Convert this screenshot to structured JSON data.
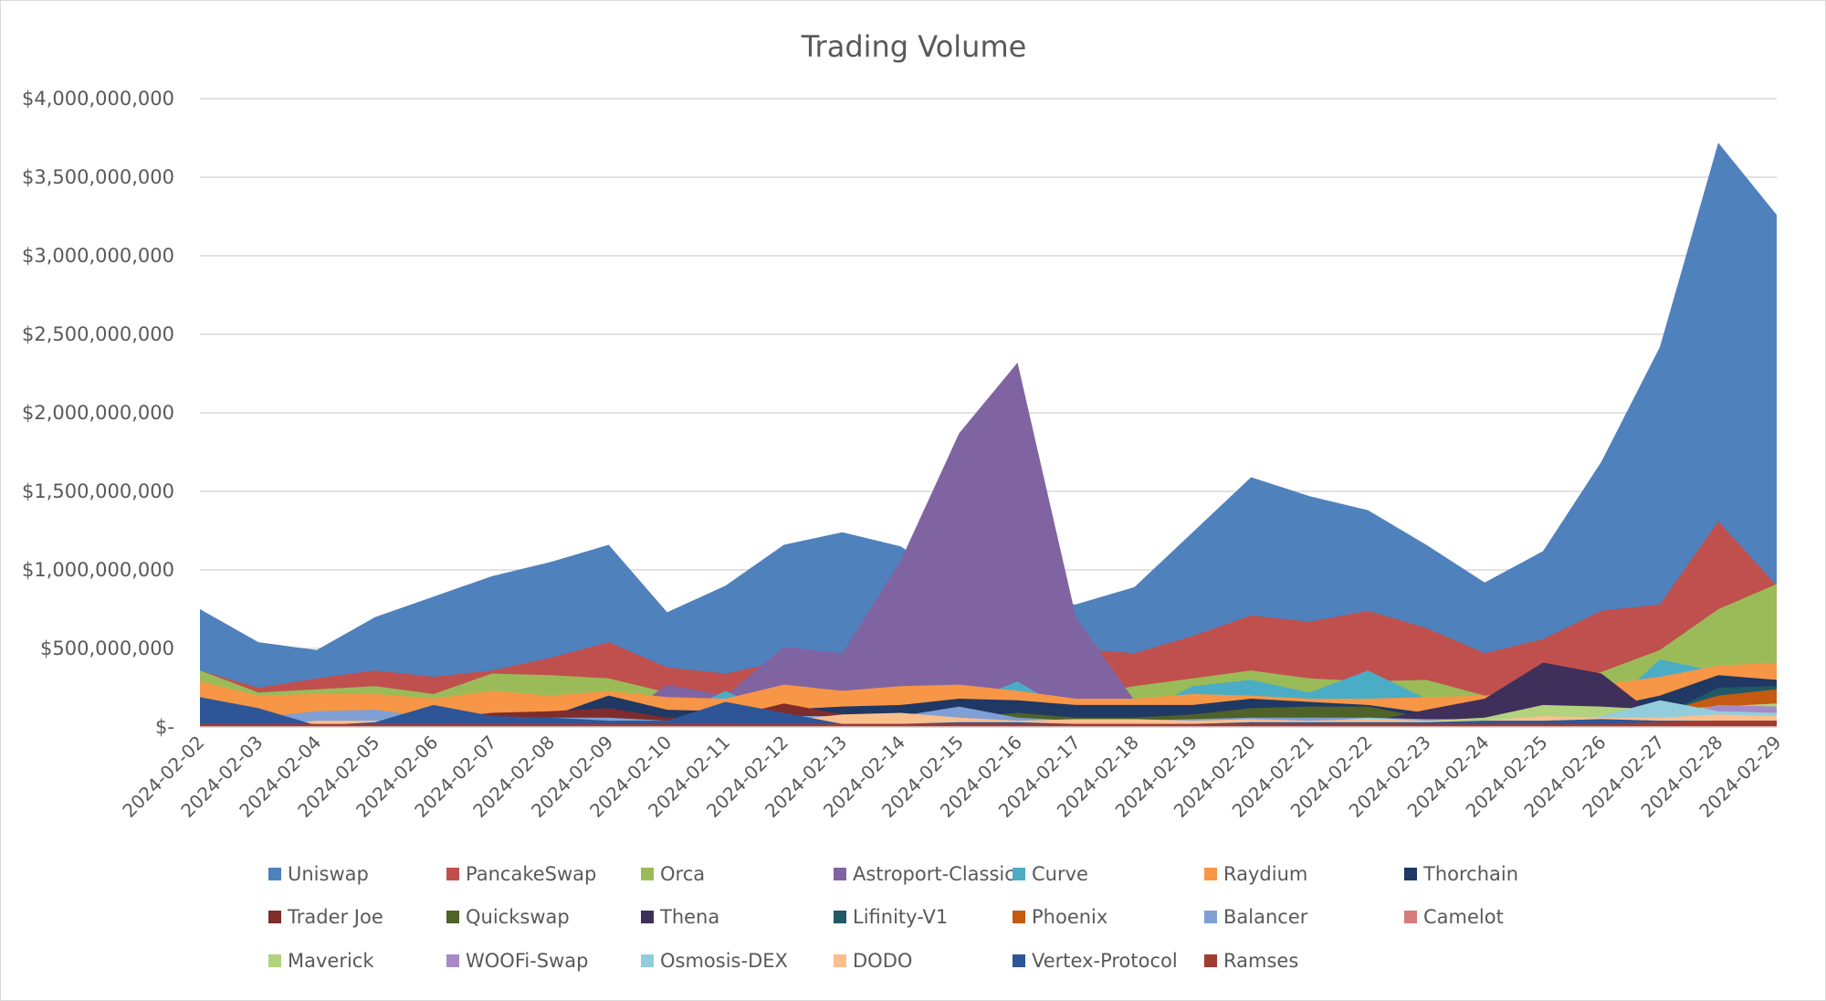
{
  "chart_data": {
    "type": "area",
    "title": "Trading Volume",
    "xlabel": "",
    "ylabel": "",
    "ylim": [
      0,
      4000000000
    ],
    "yticks": [
      0,
      500000000,
      1000000000,
      1500000000,
      2000000000,
      2500000000,
      3000000000,
      3500000000,
      4000000000
    ],
    "ytick_labels": [
      "$-",
      "$500,000,000",
      "$1,000,000,000",
      "$1,500,000,000",
      "$2,000,000,000",
      "$2,500,000,000",
      "$3,000,000,000",
      "$3,500,000,000",
      "$4,000,000,000"
    ],
    "grid": true,
    "legend_position": "bottom",
    "stacked": false,
    "x": [
      "2024-02-02",
      "2024-02-03",
      "2024-02-04",
      "2024-02-05",
      "2024-02-06",
      "2024-02-07",
      "2024-02-08",
      "2024-02-09",
      "2024-02-10",
      "2024-02-11",
      "2024-02-12",
      "2024-02-13",
      "2024-02-14",
      "2024-02-15",
      "2024-02-16",
      "2024-02-17",
      "2024-02-18",
      "2024-02-19",
      "2024-02-20",
      "2024-02-21",
      "2024-02-22",
      "2024-02-23",
      "2024-02-24",
      "2024-02-25",
      "2024-02-26",
      "2024-02-27",
      "2024-02-28",
      "2024-02-29"
    ],
    "series": [
      {
        "name": "Uniswap",
        "color": "#4f81bd",
        "values": [
          750000000,
          540000000,
          490000000,
          700000000,
          830000000,
          960000000,
          1050000000,
          1160000000,
          730000000,
          900000000,
          1160000000,
          1240000000,
          1150000000,
          900000000,
          800000000,
          780000000,
          890000000,
          1240000000,
          1590000000,
          1470000000,
          1380000000,
          1160000000,
          920000000,
          1120000000,
          1690000000,
          2420000000,
          3720000000,
          3260000000
        ]
      },
      {
        "name": "PancakeSwap",
        "color": "#c0504d",
        "values": [
          360000000,
          250000000,
          310000000,
          360000000,
          320000000,
          360000000,
          440000000,
          540000000,
          380000000,
          340000000,
          420000000,
          460000000,
          470000000,
          500000000,
          520000000,
          500000000,
          470000000,
          580000000,
          710000000,
          670000000,
          740000000,
          630000000,
          470000000,
          560000000,
          740000000,
          780000000,
          1310000000,
          900000000
        ]
      },
      {
        "name": "Orca",
        "color": "#9bbb59",
        "values": [
          360000000,
          220000000,
          240000000,
          260000000,
          210000000,
          340000000,
          330000000,
          310000000,
          220000000,
          200000000,
          230000000,
          220000000,
          240000000,
          250000000,
          220000000,
          190000000,
          260000000,
          310000000,
          360000000,
          310000000,
          290000000,
          300000000,
          200000000,
          240000000,
          350000000,
          490000000,
          750000000,
          910000000
        ]
      },
      {
        "name": "Astroport-Classic",
        "color": "#8064a2",
        "values": [
          10000000,
          10000000,
          10000000,
          10000000,
          10000000,
          10000000,
          10000000,
          10000000,
          270000000,
          200000000,
          510000000,
          470000000,
          1060000000,
          1870000000,
          2320000000,
          700000000,
          170000000,
          10000000,
          10000000,
          10000000,
          10000000,
          10000000,
          10000000,
          10000000,
          10000000,
          10000000,
          10000000,
          10000000
        ]
      },
      {
        "name": "Curve",
        "color": "#4bacc6",
        "values": [
          40000000,
          40000000,
          40000000,
          50000000,
          40000000,
          40000000,
          40000000,
          50000000,
          50000000,
          230000000,
          60000000,
          60000000,
          90000000,
          140000000,
          290000000,
          70000000,
          70000000,
          260000000,
          300000000,
          220000000,
          360000000,
          180000000,
          70000000,
          60000000,
          90000000,
          430000000,
          350000000,
          260000000
        ]
      },
      {
        "name": "Raydium",
        "color": "#f79646",
        "values": [
          290000000,
          200000000,
          210000000,
          210000000,
          180000000,
          230000000,
          200000000,
          230000000,
          190000000,
          180000000,
          270000000,
          230000000,
          260000000,
          270000000,
          230000000,
          180000000,
          180000000,
          210000000,
          200000000,
          180000000,
          180000000,
          190000000,
          200000000,
          220000000,
          270000000,
          320000000,
          390000000,
          410000000
        ]
      },
      {
        "name": "Thorchain",
        "color": "#1f3864",
        "values": [
          60000000,
          60000000,
          60000000,
          60000000,
          70000000,
          70000000,
          70000000,
          200000000,
          110000000,
          100000000,
          110000000,
          130000000,
          140000000,
          180000000,
          170000000,
          140000000,
          140000000,
          140000000,
          180000000,
          160000000,
          140000000,
          90000000,
          100000000,
          120000000,
          120000000,
          200000000,
          330000000,
          300000000
        ]
      },
      {
        "name": "Trader Joe",
        "color": "#7f2c2c",
        "values": [
          40000000,
          40000000,
          40000000,
          50000000,
          50000000,
          90000000,
          100000000,
          120000000,
          60000000,
          60000000,
          150000000,
          80000000,
          80000000,
          70000000,
          60000000,
          50000000,
          50000000,
          50000000,
          60000000,
          60000000,
          50000000,
          40000000,
          40000000,
          40000000,
          40000000,
          50000000,
          60000000,
          60000000
        ]
      },
      {
        "name": "Quickswap",
        "color": "#4f6228",
        "values": [
          30000000,
          30000000,
          30000000,
          30000000,
          30000000,
          30000000,
          30000000,
          30000000,
          30000000,
          30000000,
          30000000,
          40000000,
          40000000,
          60000000,
          90000000,
          60000000,
          60000000,
          80000000,
          120000000,
          130000000,
          130000000,
          60000000,
          50000000,
          50000000,
          70000000,
          130000000,
          160000000,
          160000000
        ]
      },
      {
        "name": "Thena",
        "color": "#3f2f5b",
        "values": [
          20000000,
          20000000,
          20000000,
          20000000,
          20000000,
          20000000,
          20000000,
          20000000,
          20000000,
          20000000,
          20000000,
          20000000,
          20000000,
          20000000,
          20000000,
          20000000,
          20000000,
          20000000,
          20000000,
          20000000,
          30000000,
          110000000,
          180000000,
          410000000,
          340000000,
          50000000,
          50000000,
          60000000
        ]
      },
      {
        "name": "Lifinity-V1",
        "color": "#215967",
        "values": [
          20000000,
          20000000,
          20000000,
          20000000,
          20000000,
          20000000,
          20000000,
          20000000,
          20000000,
          20000000,
          20000000,
          20000000,
          20000000,
          20000000,
          20000000,
          20000000,
          20000000,
          30000000,
          40000000,
          40000000,
          40000000,
          30000000,
          30000000,
          40000000,
          50000000,
          70000000,
          250000000,
          260000000
        ]
      },
      {
        "name": "Phoenix",
        "color": "#c55a11",
        "values": [
          10000000,
          10000000,
          10000000,
          10000000,
          10000000,
          10000000,
          10000000,
          10000000,
          10000000,
          10000000,
          10000000,
          10000000,
          10000000,
          10000000,
          10000000,
          10000000,
          10000000,
          10000000,
          10000000,
          20000000,
          20000000,
          20000000,
          20000000,
          30000000,
          40000000,
          90000000,
          200000000,
          240000000
        ]
      },
      {
        "name": "Balancer",
        "color": "#7f9fd5",
        "values": [
          60000000,
          60000000,
          100000000,
          110000000,
          60000000,
          60000000,
          60000000,
          60000000,
          40000000,
          50000000,
          70000000,
          70000000,
          70000000,
          130000000,
          60000000,
          40000000,
          40000000,
          50000000,
          60000000,
          60000000,
          60000000,
          50000000,
          50000000,
          60000000,
          60000000,
          70000000,
          80000000,
          80000000
        ]
      },
      {
        "name": "Camelot",
        "color": "#d87b7b",
        "values": [
          30000000,
          30000000,
          30000000,
          30000000,
          30000000,
          30000000,
          30000000,
          30000000,
          30000000,
          30000000,
          30000000,
          30000000,
          30000000,
          30000000,
          30000000,
          30000000,
          30000000,
          30000000,
          30000000,
          30000000,
          30000000,
          30000000,
          30000000,
          30000000,
          30000000,
          30000000,
          40000000,
          40000000
        ]
      },
      {
        "name": "Maverick",
        "color": "#b3d27e",
        "values": [
          20000000,
          20000000,
          20000000,
          20000000,
          20000000,
          20000000,
          20000000,
          20000000,
          20000000,
          20000000,
          20000000,
          30000000,
          30000000,
          30000000,
          30000000,
          30000000,
          20000000,
          30000000,
          40000000,
          30000000,
          40000000,
          40000000,
          60000000,
          140000000,
          130000000,
          110000000,
          130000000,
          150000000
        ]
      },
      {
        "name": "WOOFi-Swap",
        "color": "#a68bc8",
        "values": [
          20000000,
          20000000,
          20000000,
          20000000,
          20000000,
          20000000,
          20000000,
          20000000,
          20000000,
          20000000,
          20000000,
          20000000,
          20000000,
          20000000,
          20000000,
          20000000,
          20000000,
          30000000,
          30000000,
          30000000,
          30000000,
          30000000,
          30000000,
          40000000,
          40000000,
          60000000,
          140000000,
          130000000
        ]
      },
      {
        "name": "Osmosis-DEX",
        "color": "#92cddc",
        "values": [
          20000000,
          20000000,
          20000000,
          20000000,
          20000000,
          30000000,
          30000000,
          40000000,
          30000000,
          20000000,
          20000000,
          20000000,
          20000000,
          30000000,
          30000000,
          20000000,
          20000000,
          20000000,
          20000000,
          30000000,
          60000000,
          40000000,
          30000000,
          40000000,
          70000000,
          170000000,
          100000000,
          90000000
        ]
      },
      {
        "name": "DODO",
        "color": "#fbbf8e",
        "values": [
          10000000,
          10000000,
          40000000,
          40000000,
          20000000,
          20000000,
          20000000,
          30000000,
          40000000,
          30000000,
          40000000,
          80000000,
          90000000,
          60000000,
          40000000,
          50000000,
          50000000,
          40000000,
          50000000,
          40000000,
          50000000,
          40000000,
          40000000,
          70000000,
          60000000,
          60000000,
          80000000,
          70000000
        ]
      },
      {
        "name": "Vertex-Protocol",
        "color": "#2e5597",
        "values": [
          190000000,
          120000000,
          10000000,
          30000000,
          140000000,
          70000000,
          60000000,
          40000000,
          40000000,
          160000000,
          90000000,
          20000000,
          20000000,
          30000000,
          30000000,
          20000000,
          20000000,
          20000000,
          30000000,
          30000000,
          30000000,
          30000000,
          40000000,
          40000000,
          50000000,
          40000000,
          40000000,
          40000000
        ]
      },
      {
        "name": "Ramses",
        "color": "#a23b32",
        "values": [
          20000000,
          20000000,
          20000000,
          20000000,
          20000000,
          20000000,
          20000000,
          20000000,
          20000000,
          20000000,
          20000000,
          20000000,
          20000000,
          20000000,
          20000000,
          20000000,
          20000000,
          20000000,
          20000000,
          20000000,
          20000000,
          20000000,
          20000000,
          20000000,
          20000000,
          30000000,
          40000000,
          40000000
        ]
      }
    ]
  }
}
